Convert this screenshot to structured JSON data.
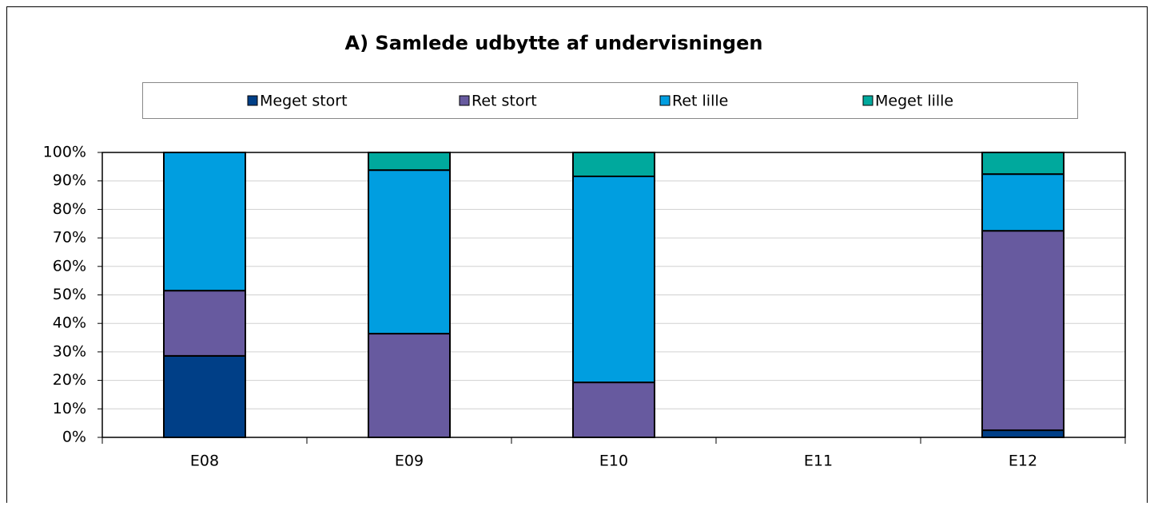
{
  "chart_data": {
    "type": "stacked_bar",
    "title": "A) Samlede udbytte af undervisningen",
    "categories": [
      "E08",
      "E09",
      "E10",
      "E11",
      "E12"
    ],
    "series": [
      {
        "name": "Meget stort",
        "color": "#003f87",
        "values": [
          28.6,
          0,
          0,
          0,
          2.5
        ]
      },
      {
        "name": "Ret stort",
        "color": "#675a9f",
        "values": [
          22.9,
          36.4,
          19.3,
          0,
          70.0
        ]
      },
      {
        "name": "Ret lille",
        "color": "#009ee0",
        "values": [
          48.5,
          57.4,
          72.3,
          0,
          19.9
        ]
      },
      {
        "name": "Meget lille",
        "color": "#00a99d",
        "values": [
          0,
          6.2,
          8.4,
          0,
          7.6
        ]
      }
    ],
    "ylim": [
      0,
      100
    ],
    "yticks": [
      {
        "value": 0,
        "label": "0%"
      },
      {
        "value": 10,
        "label": "10%"
      },
      {
        "value": 20,
        "label": "20%"
      },
      {
        "value": 30,
        "label": "30%"
      },
      {
        "value": 40,
        "label": "40%"
      },
      {
        "value": 50,
        "label": "50%"
      },
      {
        "value": 60,
        "label": "60%"
      },
      {
        "value": 70,
        "label": "70%"
      },
      {
        "value": 80,
        "label": "80%"
      },
      {
        "value": 90,
        "label": "90%"
      },
      {
        "value": 100,
        "label": "100%"
      }
    ],
    "grid": true,
    "legend": "top"
  }
}
